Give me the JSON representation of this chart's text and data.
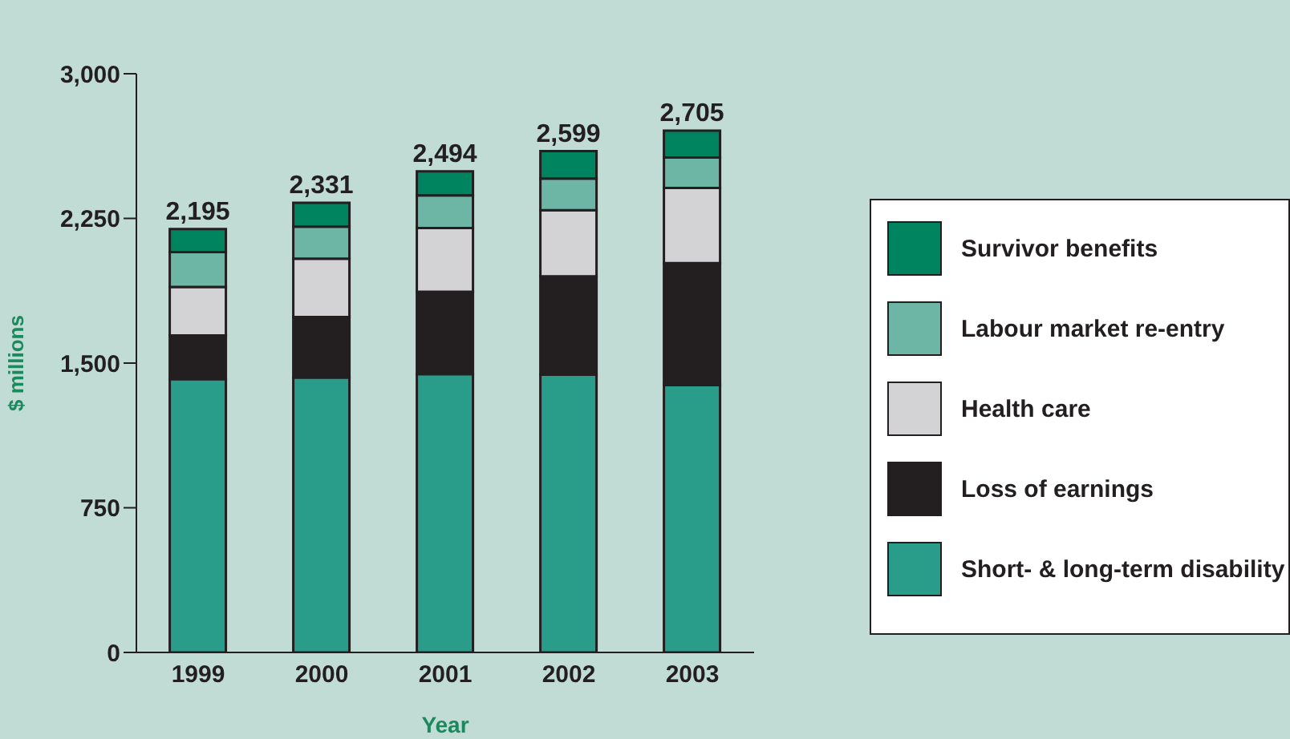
{
  "chart_data": {
    "type": "bar",
    "stacked": true,
    "xlabel": "Year",
    "ylabel": "$ millions",
    "categories": [
      "1999",
      "2000",
      "2001",
      "2002",
      "2003"
    ],
    "series": [
      {
        "name": "Short- & long-term disability",
        "color": "#2a9d8a",
        "values": [
          1417,
          1425,
          1443,
          1440,
          1386
        ]
      },
      {
        "name": "Loss of earnings",
        "color": "#231f20",
        "values": [
          226,
          314,
          427,
          510,
          632
        ]
      },
      {
        "name": "Health care",
        "color": "#d3d3d5",
        "values": [
          252,
          302,
          330,
          343,
          390
        ]
      },
      {
        "name": "Labour market re-entry",
        "color": "#6db5a5",
        "values": [
          180,
          166,
          169,
          164,
          158
        ]
      },
      {
        "name": "Survivor benefits",
        "color": "#00835f",
        "values": [
          120,
          124,
          125,
          142,
          139
        ]
      }
    ],
    "totals": [
      "2,195",
      "2,331",
      "2,494",
      "2,599",
      "2,705"
    ],
    "ylim": [
      0,
      3000
    ],
    "yticks": [
      {
        "value": 0,
        "label": "0"
      },
      {
        "value": 750,
        "label": "750"
      },
      {
        "value": 1500,
        "label": "1,500"
      },
      {
        "value": 2250,
        "label": "2,250"
      },
      {
        "value": 3000,
        "label": "3,000"
      }
    ],
    "grid": false,
    "legend": "right"
  }
}
